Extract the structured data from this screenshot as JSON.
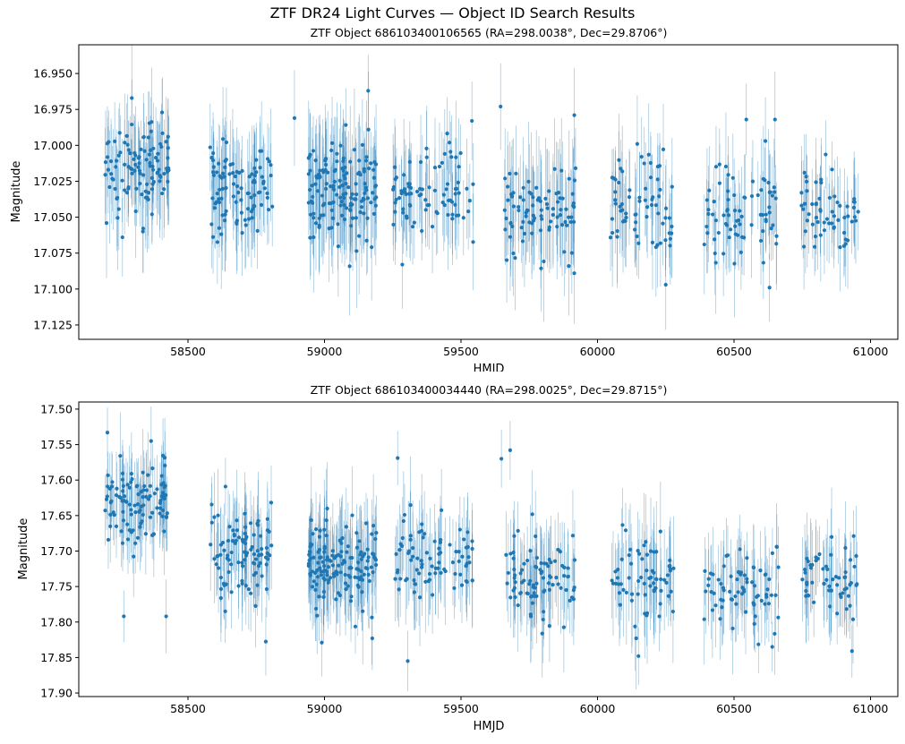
{
  "figure": {
    "suptitle": "ZTF DR24 Light Curves — Object ID Search Results"
  },
  "chart_data": [
    {
      "type": "scatter",
      "title": "ZTF Object 686103400106565  (RA=298.0038°, Dec=29.8706°)",
      "xlabel": "HMJD",
      "ylabel": "Magnitude",
      "xlim": [
        58100,
        61100
      ],
      "ylim": [
        17.135,
        16.93
      ],
      "y_inverted": true,
      "xticks": [
        58500,
        59000,
        59500,
        60000,
        60500,
        61000
      ],
      "yticks": [
        16.95,
        16.975,
        17.0,
        17.025,
        17.05,
        17.075,
        17.1,
        17.125
      ],
      "ytick_labels": [
        "16.950",
        "16.975",
        "17.000",
        "17.025",
        "17.050",
        "17.075",
        "17.100",
        "17.125"
      ],
      "point_color": "#1f77b4",
      "seasons": [
        {
          "start": 58195,
          "end": 58430,
          "center": 17.015,
          "spread": 0.022,
          "n": 110
        },
        {
          "start": 58580,
          "end": 58810,
          "center": 17.03,
          "spread": 0.022,
          "n": 100
        },
        {
          "start": 58940,
          "end": 59190,
          "center": 17.03,
          "spread": 0.024,
          "n": 150
        },
        {
          "start": 59250,
          "end": 59545,
          "center": 17.035,
          "spread": 0.022,
          "n": 85
        },
        {
          "start": 59660,
          "end": 59920,
          "center": 17.045,
          "spread": 0.024,
          "n": 90
        },
        {
          "start": 60045,
          "end": 60280,
          "center": 17.04,
          "spread": 0.021,
          "n": 70
        },
        {
          "start": 60390,
          "end": 60665,
          "center": 17.045,
          "spread": 0.021,
          "n": 75
        },
        {
          "start": 60745,
          "end": 60955,
          "center": 17.045,
          "spread": 0.019,
          "n": 60
        }
      ],
      "highlights": [
        {
          "x": 58890,
          "y": 16.981
        },
        {
          "x": 59160,
          "y": 16.962
        },
        {
          "x": 59540,
          "y": 16.983
        },
        {
          "x": 59645,
          "y": 16.973
        },
        {
          "x": 59915,
          "y": 16.979
        },
        {
          "x": 58260,
          "y": 17.064
        },
        {
          "x": 58335,
          "y": 17.06
        },
        {
          "x": 59285,
          "y": 17.083
        },
        {
          "x": 59895,
          "y": 17.084
        },
        {
          "x": 59915,
          "y": 17.089
        },
        {
          "x": 60250,
          "y": 17.097
        },
        {
          "x": 60630,
          "y": 17.099
        },
        {
          "x": 60545,
          "y": 16.982
        },
        {
          "x": 60615,
          "y": 16.997
        },
        {
          "x": 60650,
          "y": 16.982
        }
      ],
      "seed": 17
    },
    {
      "type": "scatter",
      "title": "ZTF Object 686103400034440  (RA=298.0025°, Dec=29.8715°)",
      "xlabel": "HMJD",
      "ylabel": "Magnitude",
      "xlim": [
        58100,
        61100
      ],
      "ylim": [
        17.905,
        17.49
      ],
      "y_inverted": true,
      "xticks": [
        58500,
        59000,
        59500,
        60000,
        60500,
        61000
      ],
      "yticks": [
        17.5,
        17.55,
        17.6,
        17.65,
        17.7,
        17.75,
        17.8,
        17.85,
        17.9
      ],
      "ytick_labels": [
        "17.50",
        "17.55",
        "17.60",
        "17.65",
        "17.70",
        "17.75",
        "17.80",
        "17.85",
        "17.90"
      ],
      "point_color": "#1f77b4",
      "seasons": [
        {
          "start": 58195,
          "end": 58430,
          "center": 17.63,
          "spread": 0.035,
          "n": 110
        },
        {
          "start": 58580,
          "end": 58810,
          "center": 17.7,
          "spread": 0.04,
          "n": 100
        },
        {
          "start": 58940,
          "end": 59190,
          "center": 17.72,
          "spread": 0.042,
          "n": 150
        },
        {
          "start": 59250,
          "end": 59545,
          "center": 17.72,
          "spread": 0.042,
          "n": 85
        },
        {
          "start": 59660,
          "end": 59920,
          "center": 17.74,
          "spread": 0.04,
          "n": 90
        },
        {
          "start": 60045,
          "end": 60280,
          "center": 17.74,
          "spread": 0.042,
          "n": 70
        },
        {
          "start": 60390,
          "end": 60665,
          "center": 17.75,
          "spread": 0.038,
          "n": 75
        },
        {
          "start": 60745,
          "end": 60955,
          "center": 17.74,
          "spread": 0.04,
          "n": 60
        }
      ],
      "highlights": [
        {
          "x": 58205,
          "y": 17.533
        },
        {
          "x": 58365,
          "y": 17.545
        },
        {
          "x": 59268,
          "y": 17.569
        },
        {
          "x": 59648,
          "y": 17.57
        },
        {
          "x": 59680,
          "y": 17.558
        },
        {
          "x": 58265,
          "y": 17.792
        },
        {
          "x": 58420,
          "y": 17.792
        },
        {
          "x": 59305,
          "y": 17.855
        },
        {
          "x": 60150,
          "y": 17.848
        },
        {
          "x": 60640,
          "y": 17.835
        },
        {
          "x": 60932,
          "y": 17.841
        },
        {
          "x": 59175,
          "y": 17.823
        },
        {
          "x": 58990,
          "y": 17.829
        }
      ],
      "seed": 29
    }
  ]
}
